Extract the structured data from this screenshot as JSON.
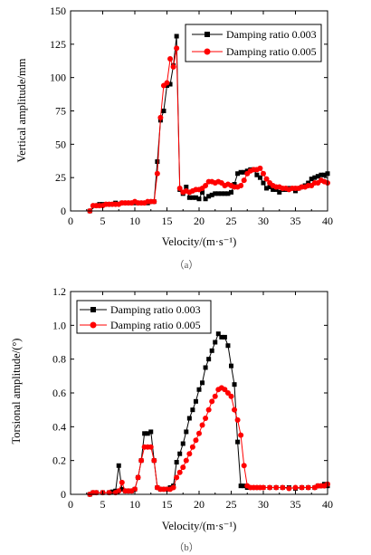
{
  "chart_data": [
    {
      "type": "line",
      "panel_label": "（a）",
      "xlabel": "Velocity/(m·s⁻¹)",
      "ylabel": "Vertical amplitude/mm",
      "xlim": [
        0,
        40
      ],
      "ylim": [
        0,
        150
      ],
      "xticks": [
        "0",
        "5",
        "10",
        "15",
        "20",
        "25",
        "30",
        "35",
        "40"
      ],
      "yticks": [
        "0",
        "25",
        "50",
        "75",
        "100",
        "125",
        "150"
      ],
      "legend_position": "top-right",
      "series": [
        {
          "name": "Damping ratio 0.003",
          "color": "#000000",
          "marker": "square",
          "points": [
            [
              3,
              0
            ],
            [
              4,
              4
            ],
            [
              4.5,
              5
            ],
            [
              5,
              5
            ],
            [
              6,
              5
            ],
            [
              7,
              6
            ],
            [
              8,
              6
            ],
            [
              9,
              6
            ],
            [
              10,
              6
            ],
            [
              11,
              6
            ],
            [
              12,
              6
            ],
            [
              13,
              7
            ],
            [
              13.5,
              37
            ],
            [
              14,
              68
            ],
            [
              14.5,
              75
            ],
            [
              15,
              94
            ],
            [
              15.5,
              95
            ],
            [
              16,
              109
            ],
            [
              16.5,
              131
            ],
            [
              17,
              16
            ],
            [
              17.5,
              13
            ],
            [
              18,
              18
            ],
            [
              18.5,
              10
            ],
            [
              19,
              10
            ],
            [
              19.5,
              10
            ],
            [
              20,
              9
            ],
            [
              20.5,
              14
            ],
            [
              21,
              9
            ],
            [
              21.5,
              11
            ],
            [
              22,
              12
            ],
            [
              22.5,
              13
            ],
            [
              23,
              13
            ],
            [
              23.5,
              13
            ],
            [
              24,
              13
            ],
            [
              24.5,
              13
            ],
            [
              25,
              14
            ],
            [
              25.5,
              20
            ],
            [
              26,
              28
            ],
            [
              26.5,
              29
            ],
            [
              27,
              29
            ],
            [
              27.5,
              30
            ],
            [
              28,
              31
            ],
            [
              28.5,
              31
            ],
            [
              29,
              27
            ],
            [
              29.5,
              25
            ],
            [
              30,
              21
            ],
            [
              30.5,
              17
            ],
            [
              31,
              18
            ],
            [
              31.5,
              16
            ],
            [
              32,
              16
            ],
            [
              32.5,
              14
            ],
            [
              33,
              16
            ],
            [
              33.5,
              16
            ],
            [
              34,
              17
            ],
            [
              34.5,
              17
            ],
            [
              35,
              15
            ],
            [
              35.5,
              17
            ],
            [
              36,
              18
            ],
            [
              36.5,
              19
            ],
            [
              37,
              21
            ],
            [
              37.5,
              24
            ],
            [
              38,
              25
            ],
            [
              38.5,
              26
            ],
            [
              39,
              27
            ],
            [
              39.5,
              27
            ],
            [
              40,
              28
            ]
          ]
        },
        {
          "name": "Damping ratio 0.005",
          "color": "#ff0000",
          "marker": "circle",
          "points": [
            [
              3,
              0
            ],
            [
              3.5,
              4
            ],
            [
              4,
              4
            ],
            [
              4.5,
              4
            ],
            [
              5,
              4
            ],
            [
              5.5,
              5
            ],
            [
              6,
              5
            ],
            [
              6.5,
              5
            ],
            [
              7,
              5
            ],
            [
              7.5,
              5
            ],
            [
              8,
              6
            ],
            [
              8.5,
              6
            ],
            [
              9,
              6
            ],
            [
              9.5,
              6
            ],
            [
              10,
              7
            ],
            [
              10.5,
              6
            ],
            [
              11,
              6
            ],
            [
              11.5,
              6
            ],
            [
              12,
              7
            ],
            [
              12.5,
              7
            ],
            [
              13,
              7
            ],
            [
              13.5,
              28
            ],
            [
              14,
              70
            ],
            [
              14.5,
              94
            ],
            [
              15,
              96
            ],
            [
              15.5,
              114
            ],
            [
              16,
              108
            ],
            [
              16.5,
              122
            ],
            [
              17,
              17
            ],
            [
              17.5,
              14
            ],
            [
              18,
              15
            ],
            [
              18.5,
              14
            ],
            [
              19,
              15
            ],
            [
              19.5,
              16
            ],
            [
              20,
              16
            ],
            [
              20.5,
              17
            ],
            [
              21,
              19
            ],
            [
              21.5,
              22
            ],
            [
              22,
              22
            ],
            [
              22.5,
              21
            ],
            [
              23,
              22
            ],
            [
              23.5,
              21
            ],
            [
              24,
              19
            ],
            [
              24.5,
              20
            ],
            [
              25,
              19
            ],
            [
              25.5,
              18
            ],
            [
              26,
              18
            ],
            [
              26.5,
              19
            ],
            [
              27,
              23
            ],
            [
              27.5,
              28
            ],
            [
              28,
              30
            ],
            [
              28.5,
              31
            ],
            [
              29,
              31
            ],
            [
              29.5,
              32
            ],
            [
              30,
              28
            ],
            [
              30.5,
              24
            ],
            [
              31,
              21
            ],
            [
              31.5,
              19
            ],
            [
              32,
              18
            ],
            [
              32.5,
              18
            ],
            [
              33,
              17
            ],
            [
              33.5,
              17
            ],
            [
              34,
              16
            ],
            [
              34.5,
              17
            ],
            [
              35,
              17
            ],
            [
              35.5,
              17
            ],
            [
              36,
              18
            ],
            [
              36.5,
              18
            ],
            [
              37,
              19
            ],
            [
              37.5,
              19
            ],
            [
              38,
              21
            ],
            [
              38.5,
              21
            ],
            [
              39,
              23
            ],
            [
              39.5,
              22
            ],
            [
              40,
              21
            ]
          ]
        }
      ]
    },
    {
      "type": "line",
      "panel_label": "（b）",
      "xlabel": "Velocity/(m·s⁻¹)",
      "ylabel": "Torsional amplitude/(°)",
      "xlim": [
        0,
        40
      ],
      "ylim": [
        0,
        1.2
      ],
      "xticks": [
        "0",
        "5",
        "10",
        "15",
        "20",
        "25",
        "30",
        "35",
        "40"
      ],
      "yticks": [
        "0",
        "0.2",
        "0.4",
        "0.6",
        "0.8",
        "1.0",
        "1.2"
      ],
      "legend_position": "top-left",
      "series": [
        {
          "name": "Damping ratio 0.003",
          "color": "#000000",
          "marker": "square",
          "points": [
            [
              3,
              0
            ],
            [
              3.5,
              0.01
            ],
            [
              4,
              0.01
            ],
            [
              5,
              0.01
            ],
            [
              6,
              0.01
            ],
            [
              6.5,
              0.015
            ],
            [
              7,
              0.02
            ],
            [
              7.5,
              0.17
            ],
            [
              8,
              0.03
            ],
            [
              8.5,
              0.02
            ],
            [
              9,
              0.02
            ],
            [
              9.5,
              0.02
            ],
            [
              10,
              0.03
            ],
            [
              10.5,
              0.1
            ],
            [
              11,
              0.2
            ],
            [
              11.5,
              0.36
            ],
            [
              12,
              0.36
            ],
            [
              12.5,
              0.37
            ],
            [
              13,
              0.2
            ],
            [
              13.5,
              0.04
            ],
            [
              14,
              0.03
            ],
            [
              14.5,
              0.03
            ],
            [
              15,
              0.03
            ],
            [
              15.5,
              0.04
            ],
            [
              16,
              0.05
            ],
            [
              16.5,
              0.19
            ],
            [
              17,
              0.24
            ],
            [
              17.5,
              0.3
            ],
            [
              18,
              0.37
            ],
            [
              18.5,
              0.45
            ],
            [
              19,
              0.5
            ],
            [
              19.5,
              0.55
            ],
            [
              20,
              0.62
            ],
            [
              20.5,
              0.66
            ],
            [
              21,
              0.75
            ],
            [
              21.5,
              0.8
            ],
            [
              22,
              0.85
            ],
            [
              22.5,
              0.9
            ],
            [
              23,
              0.95
            ],
            [
              23.5,
              0.93
            ],
            [
              24,
              0.93
            ],
            [
              24.5,
              0.88
            ],
            [
              25,
              0.76
            ],
            [
              25.5,
              0.65
            ],
            [
              26,
              0.31
            ],
            [
              26.5,
              0.05
            ],
            [
              27,
              0.05
            ],
            [
              27.5,
              0.04
            ],
            [
              28,
              0.04
            ],
            [
              28.5,
              0.04
            ],
            [
              29,
              0.04
            ],
            [
              29.5,
              0.04
            ],
            [
              30,
              0.04
            ],
            [
              31,
              0.04
            ],
            [
              32,
              0.04
            ],
            [
              33,
              0.04
            ],
            [
              34,
              0.04
            ],
            [
              35,
              0.035
            ],
            [
              36,
              0.04
            ],
            [
              37,
              0.04
            ],
            [
              38,
              0.04
            ],
            [
              38.5,
              0.05
            ],
            [
              39,
              0.05
            ],
            [
              39.5,
              0.06
            ],
            [
              40,
              0.05
            ]
          ]
        },
        {
          "name": "Damping ratio 0.005",
          "color": "#ff0000",
          "marker": "circle",
          "points": [
            [
              3,
              0
            ],
            [
              3.5,
              0.01
            ],
            [
              4,
              0.01
            ],
            [
              5,
              0.01
            ],
            [
              6,
              0.01
            ],
            [
              7,
              0.01
            ],
            [
              7.5,
              0.02
            ],
            [
              8,
              0.07
            ],
            [
              8.5,
              0.02
            ],
            [
              9,
              0.02
            ],
            [
              9.5,
              0.02
            ],
            [
              10,
              0.03
            ],
            [
              10.5,
              0.1
            ],
            [
              11,
              0.2
            ],
            [
              11.5,
              0.28
            ],
            [
              12,
              0.28
            ],
            [
              12.5,
              0.28
            ],
            [
              13,
              0.2
            ],
            [
              13.5,
              0.04
            ],
            [
              14,
              0.03
            ],
            [
              14.5,
              0.03
            ],
            [
              15,
              0.03
            ],
            [
              15.5,
              0.03
            ],
            [
              16,
              0.04
            ],
            [
              16.5,
              0.1
            ],
            [
              17,
              0.13
            ],
            [
              17.5,
              0.16
            ],
            [
              18,
              0.2
            ],
            [
              18.5,
              0.24
            ],
            [
              19,
              0.28
            ],
            [
              19.5,
              0.32
            ],
            [
              20,
              0.36
            ],
            [
              20.5,
              0.41
            ],
            [
              21,
              0.45
            ],
            [
              21.5,
              0.5
            ],
            [
              22,
              0.55
            ],
            [
              22.5,
              0.58
            ],
            [
              23,
              0.62
            ],
            [
              23.5,
              0.63
            ],
            [
              24,
              0.62
            ],
            [
              24.5,
              0.6
            ],
            [
              25,
              0.58
            ],
            [
              25.5,
              0.5
            ],
            [
              26,
              0.44
            ],
            [
              26.5,
              0.35
            ],
            [
              27,
              0.17
            ],
            [
              27.5,
              0.05
            ],
            [
              28,
              0.04
            ],
            [
              28.5,
              0.04
            ],
            [
              29,
              0.04
            ],
            [
              29.5,
              0.04
            ],
            [
              30,
              0.04
            ],
            [
              31,
              0.04
            ],
            [
              32,
              0.04
            ],
            [
              33,
              0.04
            ],
            [
              34,
              0.035
            ],
            [
              35,
              0.04
            ],
            [
              36,
              0.04
            ],
            [
              37,
              0.04
            ],
            [
              38,
              0.04
            ],
            [
              38.5,
              0.05
            ],
            [
              39,
              0.05
            ],
            [
              39.5,
              0.05
            ],
            [
              40,
              0.06
            ]
          ]
        }
      ]
    }
  ]
}
